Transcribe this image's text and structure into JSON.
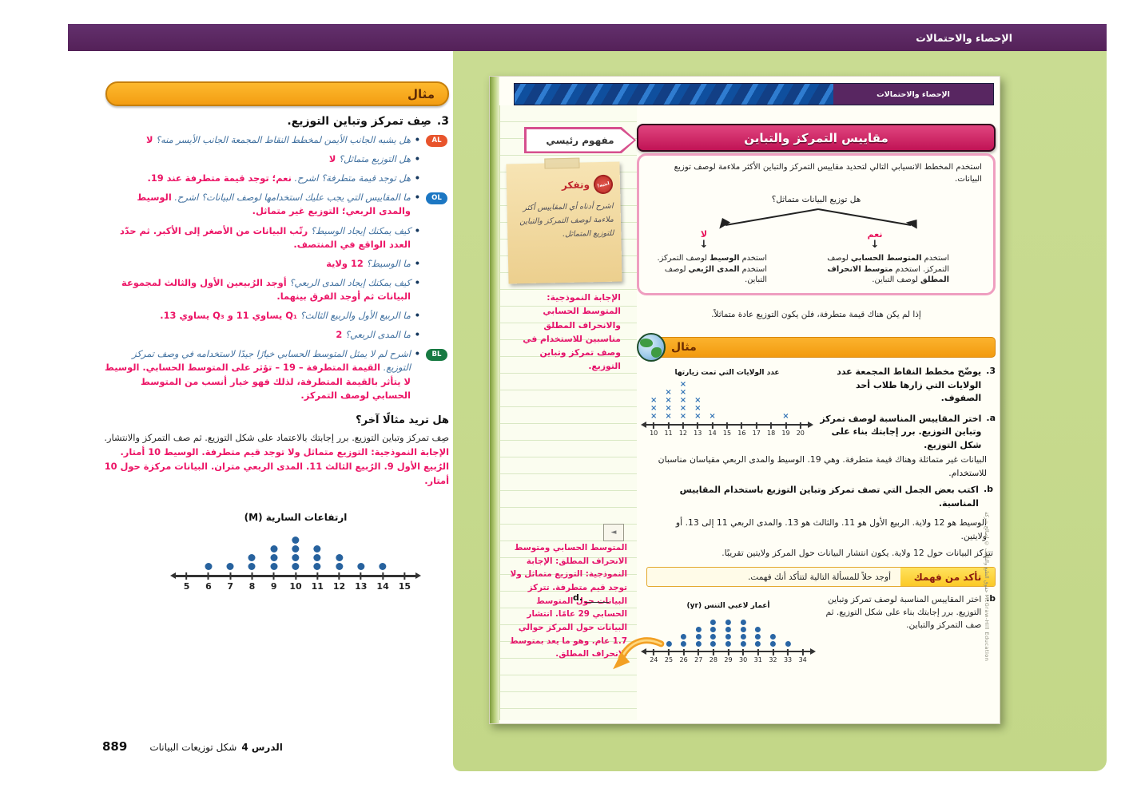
{
  "header": {
    "title": "الإحصاء والاحتمالات"
  },
  "teacher": {
    "example_label": "مثال",
    "heading_number": "3.",
    "heading": "صِف تمركز وتباين التوزيع.",
    "bullets": [
      {
        "badge": "AL",
        "q": "هل يشبه الجانب الأيمن لمخطط النقاط المجمعة الجانب الأيسر منه؟",
        "a": "لا"
      },
      {
        "q": "هل التوزيع متماثل؟",
        "a": "لا"
      },
      {
        "q": "هل توجد قيمة متطرفة؟ اشرح.",
        "a": "نعم؛ توجد قيمة متطرفة عند 19."
      },
      {
        "badge": "OL",
        "q": "ما المقاييس التي يجب عليك استخدامها لوصف البيانات؟ اشرح.",
        "a": "الوسيط والمدى الربعي؛ التوزيع غير متماثل."
      },
      {
        "q": "كيف يمكنك إيجاد الوسيط؟",
        "a": "رتّب البيانات من الأصغر إلى الأكبر. ثم حدّد العدد الواقع في المنتصف."
      },
      {
        "q": "ما الوسيط؟",
        "a": "12 ولاية"
      },
      {
        "q": "كيف يمكنك إيجاد المدى الربعي؟",
        "a": "أوجد الرُبيعين الأول والثالث لمجموعة البيانات ثم أوجد الفرق بينهما."
      },
      {
        "q": "ما الربيع الأول والربيع الثالث؟",
        "a": "Q₁ يساوي 11 و Q₃ يساوي 13."
      },
      {
        "q": "ما المدى الربعي؟",
        "a": "2"
      },
      {
        "badge": "BL",
        "q": "اشرح لم لا يمثل المتوسط الحسابي خيارًا جيدًا لاستخدامه في وصف تمركز التوزيع.",
        "a": "القيمة المتطرفة – 19 – تؤثر على المتوسط الحسابي. الوسيط لا يتأثر بالقيمة المتطرفة، لذلك فهو خيار أنسب من المتوسط الحسابي لوصف التمركز."
      }
    ],
    "more_heading": "هل تريد مثالًا آخر؟",
    "more_question": "صِف تمركز وتباين التوزيع. برر إجابتك بالاعتماد على شكل التوزيع. ثم صف التمركز والانتشار.",
    "more_answer": "الإجابة النموذجية: التوزيع متماثل ولا توجد قيم متطرفة. الوسيط 10 أمتار. الرُبيع الأول 9. الرُبيع الثالث 11. المدى الربعي متران. البيانات مركزة حول 10 أمتار.",
    "footer": {
      "page_number": "889",
      "lesson_label": "الدرس 4",
      "lesson_title": "شكل توزيعات البيانات"
    }
  },
  "student": {
    "banner_label": "الإحصاء والاحتمالات",
    "key_concept_tag": "مفهوم رئيسي",
    "key_concept_title": "مقاييس التمركز والتباين",
    "key_concept_intro": "استخدم المخطط الانسيابي التالي لتحديد مقاييس التمركز والتباين الأكثر ملاءمة لوصف توزيع البيانات.",
    "flowchart": {
      "question": "هل توزيع البيانات متماثل؟",
      "no_label": "لا",
      "yes_label": "نعم",
      "no_text": "استخدم **الوسيط** لوصف التمركز. استخدم **المدى الرُبعي** لوصف التباين.",
      "yes_text": "استخدم **المتوسط الحسابي** لوصف التمركز. استخدم **متوسط الانحراف المطلق** لوصف التباين."
    },
    "symmetry_note": "إذا لم يكن هناك قيمة متطرفة، فلن يكون التوزيع عادة متماثلاً.",
    "example_label": "مثال",
    "problem": {
      "number": "3.",
      "statement": "يوضّح مخطط النقاط المجمعة عدد الولايات التي زارها طلاب أحد الصفوف.",
      "part_a_label": "a.",
      "part_a": "اختر المقاييس المناسبة لوصف تمركز وتباين التوزيع. برر إجابتك بناء على شكل التوزيع.",
      "answer_a": "البيانات غير متماثلة وهناك قيمة متطرفة. وهي 19. الوسيط والمدى الربعي مقياسان مناسبان للاستخدام.",
      "part_b_label": "b.",
      "part_b": "اكتب بعض الجمل التي تصف تمركز وتباين التوزيع باستخدام المقاييس المناسبة.",
      "answer_b_1": "الوسيط هو 12 ولاية. الربيع الأول هو 11. والثالث هو 13. والمدى الربعي 11 إلى 13. أو ولايتين.",
      "answer_b_2": "تتركز البيانات حول 12 ولاية. يكون انتشار البيانات حول المركز ولايتين تقريبًا."
    },
    "check": {
      "label": "تأكد من فهمك",
      "text": "أوجد حلاً للمسألة التالية لتتأكد أنك فهمت.",
      "part_b_label": "b.",
      "part_b": "اختر المقاييس المناسبة لوصف تمركز وتباين التوزيع. برر إجابتك بناء على شكل التوزيع. ثم صف التمركز والتباين."
    },
    "sticky": {
      "stamp": "انتبه!",
      "title": "وتفكر",
      "text": "اشرح أدناه أي المقاييس أكثر ملاءمة لوصف التمركز والتباين للتوزيع المتماثل."
    },
    "margin_answer_1": "الإجابة النموذجية: المتوسط الحسابي والانحراف المطلق مناسبين للاستخدام في وصف تمركز وتباين التوزيع.",
    "margin_answer_2": "المتوسط الحسابي ومتوسط الانحراف المطلق: الإجابة النموذجية: التوزيع متماثل ولا توجد قيم متطرفة. تتركز البيانات حول المتوسط الحسابي 29 عامًا. انتشار البيانات حول المركز حوالي 1.7 عام. وهو ما يعد بمتوسط الانحراف المطلق.",
    "part_d_label": "d.",
    "copyright": "حقوق الطبع والتأليف © لصالح شركة McGraw-Hill Education"
  },
  "chart_data": [
    {
      "type": "dot_plot",
      "title": "ارتفاعات السارية (M)",
      "marker": "dot",
      "x": [
        5,
        6,
        7,
        8,
        9,
        10,
        11,
        12,
        13,
        14,
        15
      ],
      "counts": [
        0,
        1,
        1,
        2,
        3,
        4,
        3,
        2,
        1,
        1,
        0
      ],
      "xlim": [
        5,
        15
      ]
    },
    {
      "type": "dot_plot",
      "title": "عدد الولايات التي تمت زيارتها",
      "marker": "x",
      "x": [
        10,
        11,
        12,
        13,
        14,
        15,
        16,
        17,
        18,
        19,
        20
      ],
      "counts": [
        3,
        4,
        5,
        3,
        1,
        0,
        0,
        0,
        0,
        1,
        0
      ],
      "xlim": [
        10,
        20
      ]
    },
    {
      "type": "dot_plot",
      "title": "أعمار لاعبي التنس (yr)",
      "marker": "dot",
      "x": [
        24,
        25,
        26,
        27,
        28,
        29,
        30,
        31,
        32,
        33,
        34
      ],
      "counts": [
        0,
        1,
        2,
        3,
        4,
        4,
        4,
        3,
        2,
        1,
        0
      ],
      "xlim": [
        24,
        34
      ]
    }
  ]
}
